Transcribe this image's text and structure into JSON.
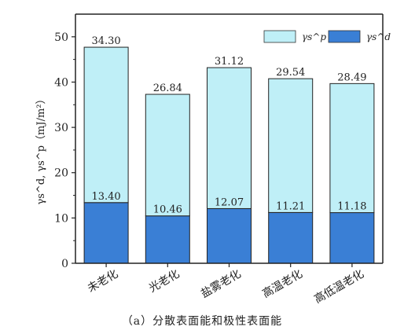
{
  "chart_data": {
    "type": "bar",
    "stacked": true,
    "categories": [
      "未老化",
      "光老化",
      "盐雾老化",
      "高温老化",
      "高低温老化"
    ],
    "series": [
      {
        "name": "γs^d",
        "values": [
          13.4,
          10.46,
          12.07,
          11.21,
          11.18
        ],
        "color": "#3a7fd5"
      },
      {
        "name": "γs^p",
        "values": [
          34.3,
          26.84,
          31.12,
          29.54,
          28.49
        ],
        "color": "#bfeff7"
      }
    ],
    "value_labels_d": [
      "13.40",
      "10.46",
      "12.07",
      "11.21",
      "11.18"
    ],
    "value_labels_p": [
      "34.30",
      "26.84",
      "31.12",
      "29.54",
      "28.49"
    ],
    "yticks": [
      "0",
      "10",
      "20",
      "30",
      "40",
      "50"
    ],
    "ylim": [
      0,
      55
    ],
    "ylabel": "γs^d, γs^p（mJ/m²）",
    "legend_position": "top-right",
    "grid": false
  },
  "caption": "（a）分散表面能和极性表面能"
}
